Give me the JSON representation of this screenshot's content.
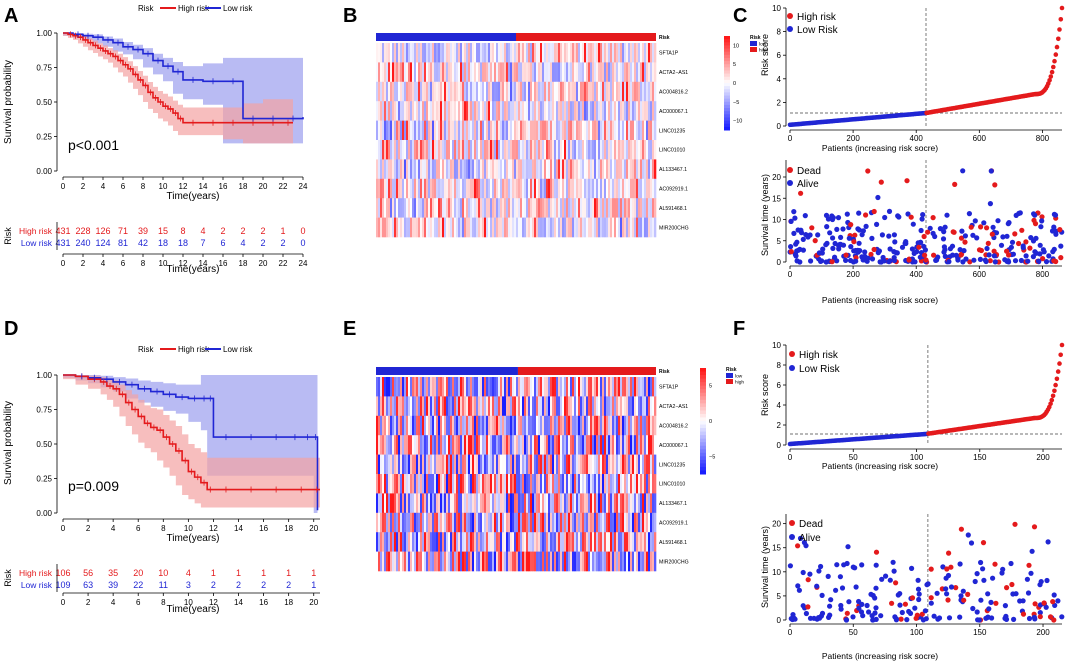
{
  "colors": {
    "high": "#e41a1c",
    "low": "#2026d4",
    "high_fill": "#f4a3a3",
    "low_fill": "#a8aaf0",
    "overlap": "#a070b8"
  },
  "panels": [
    {
      "letter": "A",
      "kind": "km"
    },
    {
      "letter": "B",
      "kind": "heatmap"
    },
    {
      "letter": "C",
      "kind": "risk"
    },
    {
      "letter": "D",
      "kind": "km"
    },
    {
      "letter": "E",
      "kind": "heatmap"
    },
    {
      "letter": "F",
      "kind": "risk"
    }
  ],
  "chart_data": [
    {
      "panel": "A",
      "type": "line",
      "subtype": "kaplan-meier",
      "legend_title": "Risk",
      "legend": [
        "High risk",
        "Low risk"
      ],
      "ylabel": "Survival probability",
      "xlabel": "Time(years)",
      "xticks": [
        0,
        2,
        4,
        6,
        8,
        10,
        12,
        14,
        16,
        18,
        20,
        22,
        24
      ],
      "yticks": [
        "0.00",
        "0.25",
        "0.50",
        "0.75",
        "1.00"
      ],
      "xlim": [
        0,
        24
      ],
      "ylim": [
        0,
        1
      ],
      "pvalue": "p<0.001",
      "series": [
        {
          "name": "High risk",
          "x": [
            0,
            0.5,
            1,
            1.5,
            2,
            2.5,
            3,
            3.5,
            4,
            4.5,
            5,
            5.5,
            6,
            6.5,
            7,
            7.5,
            8,
            8.5,
            9,
            9.5,
            10,
            10.5,
            11,
            11.5,
            12,
            14,
            16,
            18,
            20,
            22,
            23
          ],
          "y": [
            1,
            0.99,
            0.98,
            0.97,
            0.95,
            0.93,
            0.91,
            0.89,
            0.87,
            0.85,
            0.83,
            0.8,
            0.77,
            0.74,
            0.7,
            0.66,
            0.62,
            0.57,
            0.53,
            0.5,
            0.47,
            0.45,
            0.42,
            0.38,
            0.35,
            0.35,
            0.35,
            0.35,
            0.35,
            0.35,
            0.35
          ],
          "upper": [
            1,
            1,
            0.995,
            0.99,
            0.975,
            0.96,
            0.945,
            0.925,
            0.91,
            0.89,
            0.875,
            0.85,
            0.825,
            0.795,
            0.76,
            0.725,
            0.69,
            0.645,
            0.61,
            0.58,
            0.56,
            0.54,
            0.51,
            0.48,
            0.46,
            0.46,
            0.46,
            0.49,
            0.52,
            0.52,
            0.52
          ],
          "lower": [
            1,
            0.98,
            0.965,
            0.95,
            0.925,
            0.9,
            0.875,
            0.855,
            0.83,
            0.81,
            0.785,
            0.75,
            0.715,
            0.685,
            0.64,
            0.595,
            0.55,
            0.5,
            0.45,
            0.42,
            0.38,
            0.36,
            0.33,
            0.29,
            0.26,
            0.26,
            0.26,
            0.23,
            0.2,
            0.2,
            0.2
          ]
        },
        {
          "name": "Low risk",
          "x": [
            0,
            1,
            2,
            3,
            4,
            5,
            6,
            7,
            8,
            9,
            10,
            11,
            12,
            14,
            16,
            18,
            20,
            22,
            24
          ],
          "y": [
            1,
            0.99,
            0.98,
            0.97,
            0.95,
            0.93,
            0.9,
            0.88,
            0.85,
            0.8,
            0.76,
            0.72,
            0.66,
            0.65,
            0.65,
            0.38,
            0.38,
            0.38,
            0.39
          ],
          "upper": [
            1,
            1,
            0.995,
            0.99,
            0.975,
            0.96,
            0.935,
            0.915,
            0.89,
            0.85,
            0.82,
            0.79,
            0.76,
            0.78,
            0.82,
            0.82,
            0.82,
            0.82,
            0.82
          ],
          "lower": [
            1,
            0.98,
            0.965,
            0.95,
            0.925,
            0.9,
            0.865,
            0.845,
            0.81,
            0.75,
            0.7,
            0.65,
            0.56,
            0.52,
            0.48,
            0.2,
            0.2,
            0.2,
            0.2
          ]
        }
      ],
      "risk_table": {
        "label": "Risk",
        "rows": [
          {
            "name": "High risk",
            "counts": [
              "431",
              "228",
              "126",
              "71",
              "39",
              "15",
              "8",
              "4",
              "2",
              "2",
              "2",
              "1",
              "0"
            ]
          },
          {
            "name": "Low risk",
            "counts": [
              "431",
              "240",
              "124",
              "81",
              "42",
              "18",
              "18",
              "7",
              "6",
              "4",
              "2",
              "2",
              "0"
            ]
          }
        ],
        "xlabel": "Time(years)"
      }
    },
    {
      "panel": "B",
      "type": "heatmap",
      "genes": [
        "SFTA1P",
        "ACTA2−AS1",
        "AC004816.2",
        "AC000067.1",
        "LINC01235",
        "LINC01010",
        "AL133467.1",
        "AC092919.1",
        "AL591468.1",
        "MIR200CHG"
      ],
      "annotation_title": "Risk",
      "annotation_levels": [
        "low",
        "high"
      ],
      "scale_ticks": [
        "10",
        "5",
        "0",
        "−5",
        "−10"
      ],
      "n_low": 431,
      "n_high": 431
    },
    {
      "panel": "C",
      "type": "scatter",
      "top": {
        "legend": [
          "High risk",
          "Low Risk"
        ],
        "ylabel": "Risk score",
        "xlabel": "Patients (increasing risk socre)",
        "xticks": [
          "0",
          "200",
          "400",
          "600",
          "800"
        ],
        "yticks": [
          "0",
          "2",
          "4",
          "6",
          "8",
          "10"
        ],
        "xlim": [
          0,
          862
        ],
        "ylim": [
          0,
          10
        ],
        "cutoff_index": 431,
        "cutoff_score": 1.1
      },
      "bottom": {
        "legend": [
          "Dead",
          "Alive"
        ],
        "ylabel": "Survival time (years)",
        "xlabel": "Patients (increasing risk socre)",
        "xticks": [
          "0",
          "200",
          "400",
          "600",
          "800"
        ],
        "yticks": [
          "0",
          "5",
          "10",
          "15",
          "20"
        ],
        "xlim": [
          0,
          862
        ],
        "ylim": [
          0,
          24
        ],
        "cutoff_index": 431
      }
    },
    {
      "panel": "D",
      "type": "line",
      "subtype": "kaplan-meier",
      "legend_title": "Risk",
      "legend": [
        "High risk",
        "Low risk"
      ],
      "ylabel": "Survival probability",
      "xlabel": "Time(years)",
      "xticks": [
        0,
        2,
        4,
        6,
        8,
        10,
        12,
        14,
        16,
        18,
        20
      ],
      "yticks": [
        "0.00",
        "0.25",
        "0.50",
        "0.75",
        "1.00"
      ],
      "xlim": [
        0,
        20.5
      ],
      "ylim": [
        0,
        1
      ],
      "pvalue": "p=0.009",
      "series": [
        {
          "name": "High risk",
          "x": [
            0,
            1,
            2,
            3,
            3.5,
            4,
            4.5,
            5,
            5.5,
            6,
            6.5,
            7,
            7.5,
            8,
            8.5,
            9,
            9.5,
            10,
            10.5,
            11,
            11.5,
            12,
            14,
            16,
            18,
            20,
            20.5
          ],
          "y": [
            1,
            0.99,
            0.97,
            0.95,
            0.92,
            0.9,
            0.86,
            0.8,
            0.75,
            0.7,
            0.65,
            0.62,
            0.6,
            0.55,
            0.5,
            0.45,
            0.38,
            0.3,
            0.26,
            0.22,
            0.17,
            0.17,
            0.17,
            0.17,
            0.17,
            0.17,
            0.17
          ],
          "upper": [
            1,
            1,
            0.995,
            0.985,
            0.97,
            0.96,
            0.93,
            0.89,
            0.86,
            0.82,
            0.78,
            0.76,
            0.75,
            0.71,
            0.67,
            0.63,
            0.57,
            0.5,
            0.47,
            0.44,
            0.4,
            0.4,
            0.4,
            0.4,
            0.4,
            0.4,
            0.4
          ],
          "lower": [
            1,
            0.97,
            0.93,
            0.9,
            0.86,
            0.82,
            0.77,
            0.7,
            0.63,
            0.57,
            0.51,
            0.47,
            0.44,
            0.38,
            0.33,
            0.27,
            0.2,
            0.13,
            0.1,
            0.07,
            0.04,
            0.04,
            0.04,
            0.04,
            0.04,
            0.04,
            0.04
          ]
        },
        {
          "name": "Low risk",
          "x": [
            0,
            1,
            2,
            3,
            4,
            5,
            6,
            7,
            8,
            9,
            10,
            11,
            11.5,
            12,
            14,
            16,
            18,
            19,
            20,
            20.3
          ],
          "y": [
            1,
            0.99,
            0.98,
            0.97,
            0.95,
            0.93,
            0.9,
            0.88,
            0.86,
            0.84,
            0.83,
            0.83,
            0.83,
            0.55,
            0.55,
            0.55,
            0.55,
            0.55,
            0.55,
            0.02
          ],
          "upper": [
            1,
            1,
            1,
            0.995,
            0.985,
            0.975,
            0.96,
            0.95,
            0.94,
            0.93,
            0.93,
            1,
            1,
            1,
            1,
            1,
            1,
            1,
            1,
            1
          ],
          "lower": [
            1,
            0.98,
            0.96,
            0.94,
            0.91,
            0.88,
            0.83,
            0.8,
            0.77,
            0.74,
            0.72,
            0.66,
            0.6,
            0.27,
            0.27,
            0.27,
            0.27,
            0.27,
            0.27,
            0
          ]
        }
      ],
      "risk_table": {
        "label": "Risk",
        "rows": [
          {
            "name": "High risk",
            "counts": [
              "106",
              "56",
              "35",
              "20",
              "10",
              "4",
              "1",
              "1",
              "1",
              "1",
              "1"
            ]
          },
          {
            "name": "Low risk",
            "counts": [
              "109",
              "63",
              "39",
              "22",
              "11",
              "3",
              "2",
              "2",
              "2",
              "2",
              "1"
            ]
          }
        ],
        "xlabel": "Time(years)"
      }
    },
    {
      "panel": "E",
      "type": "heatmap",
      "genes": [
        "SFTA1P",
        "ACTA2−AS1",
        "AC004816.2",
        "AC000067.1",
        "LINC01235",
        "LINC01010",
        "AL133467.1",
        "AC092919.1",
        "AL591468.1",
        "MIR200CHG"
      ],
      "annotation_title": "Risk",
      "annotation_levels": [
        "low",
        "high"
      ],
      "scale_ticks": [
        "5",
        "0",
        "−5"
      ],
      "n_low": 109,
      "n_high": 106
    },
    {
      "panel": "F",
      "type": "scatter",
      "top": {
        "legend": [
          "High risk",
          "Low Risk"
        ],
        "ylabel": "Risk score",
        "xlabel": "Patients (increasing risk socre)",
        "xticks": [
          "0",
          "50",
          "100",
          "150",
          "200"
        ],
        "yticks": [
          "0",
          "2",
          "4",
          "6",
          "8",
          "10"
        ],
        "xlim": [
          0,
          215
        ],
        "ylim": [
          0,
          10
        ],
        "cutoff_index": 109,
        "cutoff_score": 1.1
      },
      "bottom": {
        "legend": [
          "Dead",
          "Alive"
        ],
        "ylabel": "Survival time (years)",
        "xlabel": "Patients (increasing risk socre)",
        "xticks": [
          "0",
          "50",
          "100",
          "150",
          "200"
        ],
        "yticks": [
          "0",
          "5",
          "10",
          "15",
          "20"
        ],
        "xlim": [
          0,
          215
        ],
        "ylim": [
          0,
          22
        ],
        "cutoff_index": 109
      }
    }
  ]
}
